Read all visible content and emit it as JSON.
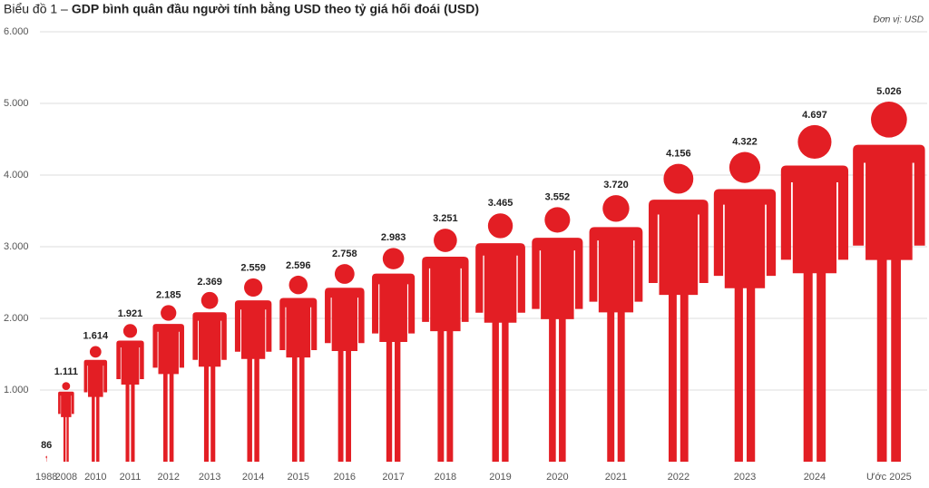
{
  "chart_data": {
    "type": "pictogram",
    "figure_label": "Biểu đồ 1 –",
    "title": "GDP bình quân đầu người tính bằng USD theo tỷ giá hối đoái (USD)",
    "unit_note": "Đơn vị: USD",
    "categories": [
      "1988",
      "2008",
      "2010",
      "2011",
      "2012",
      "2013",
      "2014",
      "2015",
      "2016",
      "2017",
      "2018",
      "2019",
      "2020",
      "2021",
      "2022",
      "2023",
      "2024",
      "Ước 2025"
    ],
    "values": [
      86,
      1111,
      1614,
      1921,
      2185,
      2369,
      2559,
      2596,
      2758,
      2983,
      3251,
      3465,
      3552,
      3720,
      4156,
      4322,
      4697,
      5026
    ],
    "value_labels": [
      "86",
      "1.111",
      "1.614",
      "1.921",
      "2.185",
      "2.369",
      "2.559",
      "2.596",
      "2.758",
      "2.983",
      "3.251",
      "3.465",
      "3.552",
      "3.720",
      "4.156",
      "4.322",
      "4.697",
      "5.026"
    ],
    "color": "#e31e24",
    "ylim": [
      0,
      6000
    ],
    "yticks": [
      {
        "value": 1000,
        "label": "1.000"
      },
      {
        "value": 2000,
        "label": "2.000"
      },
      {
        "value": 3000,
        "label": "3.000"
      },
      {
        "value": 4000,
        "label": "4.000"
      },
      {
        "value": 5000,
        "label": "5.000"
      },
      {
        "value": 6000,
        "label": "6.000"
      }
    ],
    "grid": true
  }
}
